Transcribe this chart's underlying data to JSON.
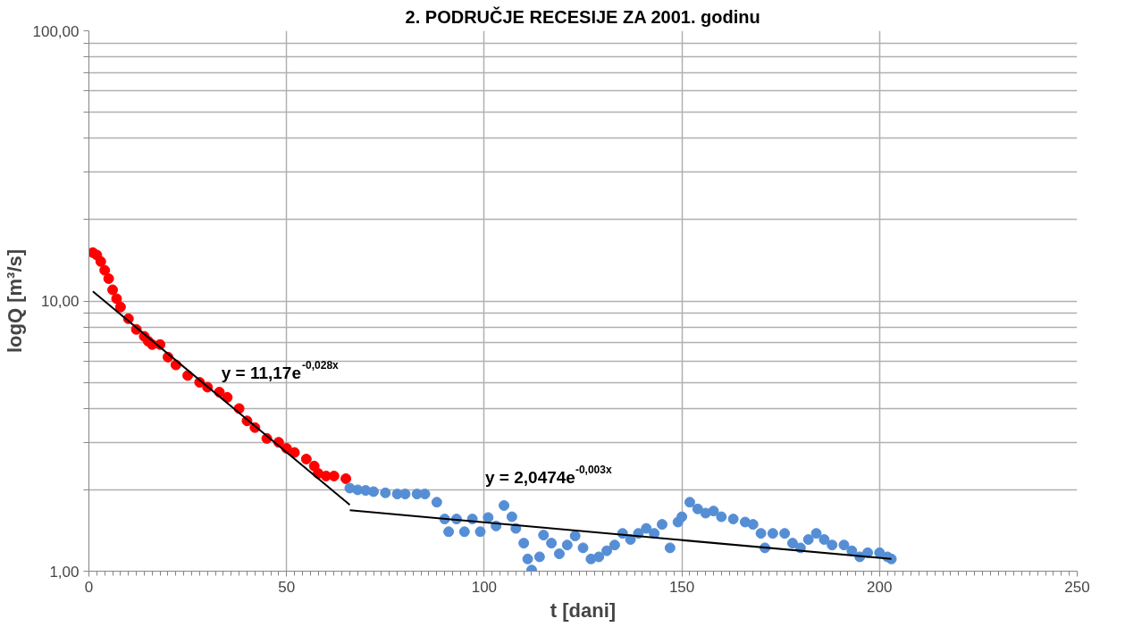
{
  "chart_data": {
    "type": "scatter",
    "title": "2. PODRUČJE RECESIJE ZA 2001. godinu",
    "xlabel": "t [dani]",
    "ylabel": "logQ [m³/s]",
    "log": "y",
    "grid": true,
    "xlim": [
      0,
      250
    ],
    "xticks": [
      0,
      50,
      100,
      150,
      200,
      250
    ],
    "ylim": [
      1,
      100
    ],
    "yticks": [
      {
        "value": 1,
        "label": "1,00"
      },
      {
        "value": 2,
        "label": null
      },
      {
        "value": 3,
        "label": null
      },
      {
        "value": 4,
        "label": null
      },
      {
        "value": 5,
        "label": null
      },
      {
        "value": 6,
        "label": null
      },
      {
        "value": 7,
        "label": null
      },
      {
        "value": 8,
        "label": null
      },
      {
        "value": 9,
        "label": null
      },
      {
        "value": 10,
        "label": "10,00"
      },
      {
        "value": 20,
        "label": null
      },
      {
        "value": 30,
        "label": null
      },
      {
        "value": 40,
        "label": null
      },
      {
        "value": 50,
        "label": null
      },
      {
        "value": 60,
        "label": null
      },
      {
        "value": 70,
        "label": null
      },
      {
        "value": 80,
        "label": null
      },
      {
        "value": 90,
        "label": null
      },
      {
        "value": 100,
        "label": "100,00"
      }
    ],
    "series": [
      {
        "marker": "circle",
        "color": "#ff0000",
        "x": [
          1,
          2,
          3,
          4,
          5,
          6,
          7,
          8,
          10,
          12,
          14,
          15,
          16,
          18,
          20,
          22,
          25,
          28,
          30,
          33,
          35,
          38,
          40,
          42,
          45,
          48,
          50,
          52,
          55,
          57,
          58,
          60,
          62,
          65
        ],
        "values": [
          15.1,
          14.8,
          14.0,
          13.0,
          12.1,
          11.0,
          10.2,
          9.5,
          8.6,
          7.85,
          7.4,
          7.1,
          6.9,
          6.9,
          6.2,
          5.8,
          5.3,
          5.0,
          4.8,
          4.6,
          4.4,
          4.0,
          3.6,
          3.4,
          3.1,
          3.0,
          2.85,
          2.75,
          2.6,
          2.45,
          2.3,
          2.25,
          2.25,
          2.2
        ]
      },
      {
        "marker": "circle",
        "color": "#558ed5",
        "x": [
          66,
          68,
          70,
          72,
          75,
          78,
          80,
          83,
          85,
          88,
          90,
          91,
          93,
          95,
          97,
          99,
          101,
          103,
          105,
          107,
          108,
          110,
          111,
          112,
          114,
          115,
          117,
          119,
          121,
          123,
          125,
          127,
          129,
          131,
          133,
          135,
          137,
          139,
          141,
          143,
          145,
          147,
          149,
          150,
          152,
          154,
          156,
          158,
          160,
          163,
          166,
          168,
          170,
          171,
          173,
          176,
          178,
          180,
          182,
          184,
          186,
          188,
          191,
          193,
          195,
          197,
          200,
          202,
          203
        ],
        "values": [
          2.03,
          2.0,
          1.99,
          1.97,
          1.95,
          1.93,
          1.93,
          1.93,
          1.93,
          1.8,
          1.56,
          1.4,
          1.56,
          1.4,
          1.56,
          1.4,
          1.58,
          1.47,
          1.75,
          1.59,
          1.44,
          1.27,
          1.11,
          1.01,
          1.13,
          1.36,
          1.27,
          1.16,
          1.25,
          1.35,
          1.22,
          1.11,
          1.13,
          1.19,
          1.25,
          1.38,
          1.31,
          1.38,
          1.44,
          1.38,
          1.49,
          1.22,
          1.52,
          1.59,
          1.8,
          1.7,
          1.64,
          1.67,
          1.59,
          1.56,
          1.52,
          1.49,
          1.38,
          1.22,
          1.38,
          1.38,
          1.27,
          1.22,
          1.31,
          1.38,
          1.31,
          1.25,
          1.25,
          1.19,
          1.13,
          1.17,
          1.17,
          1.13,
          1.11
        ]
      },
      {
        "type": "line",
        "color": "#000000",
        "x": [
          1,
          66
        ],
        "values": [
          10.86,
          1.76
        ]
      },
      {
        "type": "line",
        "color": "#000000",
        "x": [
          66,
          203
        ],
        "values": [
          1.68,
          1.11
        ]
      }
    ],
    "annotations": [
      "y = 11,17e$^{-0,028x}$",
      "y = 2,0474e$^{-0,003x}$"
    ]
  }
}
